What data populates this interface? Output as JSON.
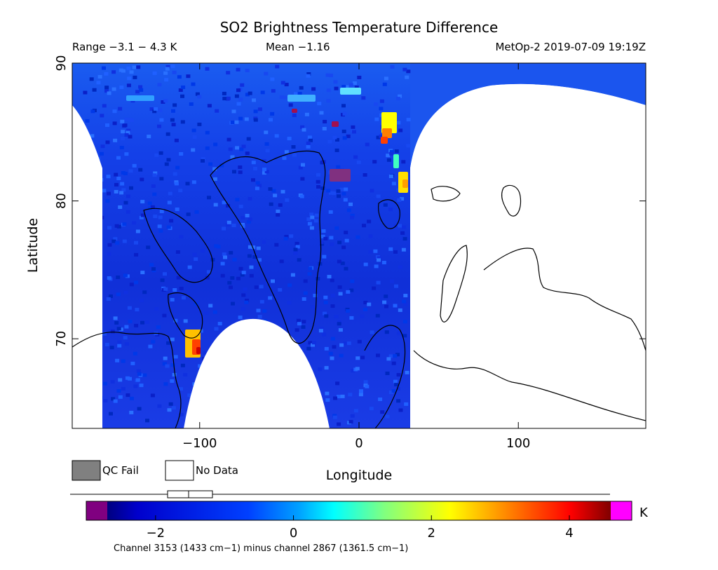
{
  "header": {
    "title": "SO2 Brightness Temperature Difference",
    "range": "Range −3.1 − 4.3 K",
    "mean": "Mean −1.16",
    "satellite": "MetOp-2 2019-07-09 19:19Z"
  },
  "legend": {
    "qc_fail_label": "QC Fail",
    "qc_fail_color": "#808080",
    "no_data_label": "No Data",
    "no_data_color": "#ffffff"
  },
  "colorbar": {
    "unit": "K",
    "min": -2.7,
    "max": 4.6,
    "ticks": [
      -2,
      0,
      2,
      4
    ],
    "tick_labels": [
      "−2",
      "0",
      "2",
      "4"
    ],
    "under_color": "#800080",
    "over_color": "#ff00ff",
    "footnote": "Channel 3153 (1433 cm−1) minus channel 2867 (1361.5 cm−1)"
  },
  "chart_data": {
    "type": "heatmap",
    "title": "SO2 Brightness Temperature Difference",
    "xlabel": "Longitude",
    "ylabel": "Latitude",
    "xlim": [
      -180,
      180
    ],
    "ylim": [
      63.5,
      90
    ],
    "x_ticks": [
      -100,
      0,
      100
    ],
    "x_tick_labels": [
      "−100",
      "0",
      "100"
    ],
    "y_ticks": [
      70,
      80,
      90
    ],
    "y_tick_labels": [
      "70",
      "80",
      "90"
    ],
    "value_range": [
      -3.1,
      4.3
    ],
    "mean": -1.16,
    "unit": "K",
    "colormap": [
      "#000080",
      "#0000ff",
      "#00a0ff",
      "#00ffff",
      "#80ff80",
      "#ffff00",
      "#ff8000",
      "#ff0000",
      "#800000"
    ],
    "grid": false
  }
}
